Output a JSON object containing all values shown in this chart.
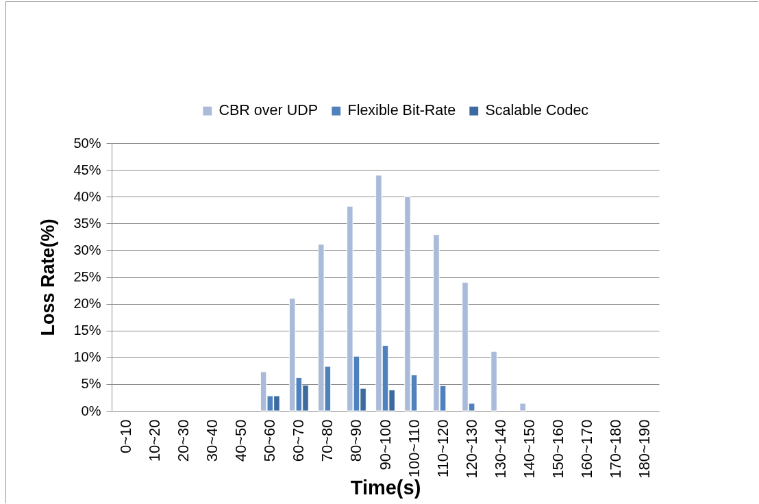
{
  "chart_data": {
    "type": "bar",
    "xlabel": "Time(s)",
    "ylabel": "Loss Rate(%)",
    "categories": [
      "0~10",
      "10~20",
      "20~30",
      "30~40",
      "40~50",
      "50~60",
      "60~70",
      "70~80",
      "80~90",
      "90~100",
      "100~110",
      "110~120",
      "120~130",
      "130~140",
      "140~150",
      "150~160",
      "160~170",
      "170~180",
      "180~190"
    ],
    "series": [
      {
        "name": "CBR over UDP",
        "color": "#aabbd9",
        "values": [
          0,
          0,
          0,
          0,
          0,
          7.3,
          21.0,
          31.1,
          38.2,
          44.0,
          40.0,
          32.9,
          24.0,
          11.1,
          1.4,
          0,
          0,
          0,
          0
        ]
      },
      {
        "name": "Flexible Bit-Rate",
        "color": "#4f81bd",
        "values": [
          0,
          0,
          0,
          0,
          0,
          2.8,
          6.2,
          8.3,
          10.2,
          12.2,
          6.7,
          4.7,
          1.4,
          0,
          0,
          0,
          0,
          0,
          0
        ]
      },
      {
        "name": "Scalable Codec",
        "color": "#3d6a9e",
        "values": [
          0,
          0,
          0,
          0,
          0,
          2.8,
          4.8,
          0,
          4.2,
          3.9,
          0,
          0,
          0,
          0,
          0,
          0,
          0,
          0,
          0
        ]
      }
    ],
    "ylim": [
      0,
      50
    ],
    "yticks": [
      {
        "value": 0,
        "label": "0%"
      },
      {
        "value": 5,
        "label": "5%"
      },
      {
        "value": 10,
        "label": "10%"
      },
      {
        "value": 15,
        "label": "15%"
      },
      {
        "value": 20,
        "label": "20%"
      },
      {
        "value": 25,
        "label": "25%"
      },
      {
        "value": 30,
        "label": "30%"
      },
      {
        "value": 35,
        "label": "35%"
      },
      {
        "value": 40,
        "label": "40%"
      },
      {
        "value": 45,
        "label": "45%"
      },
      {
        "value": 50,
        "label": "50%"
      }
    ],
    "grid": "y",
    "legend": "top"
  }
}
